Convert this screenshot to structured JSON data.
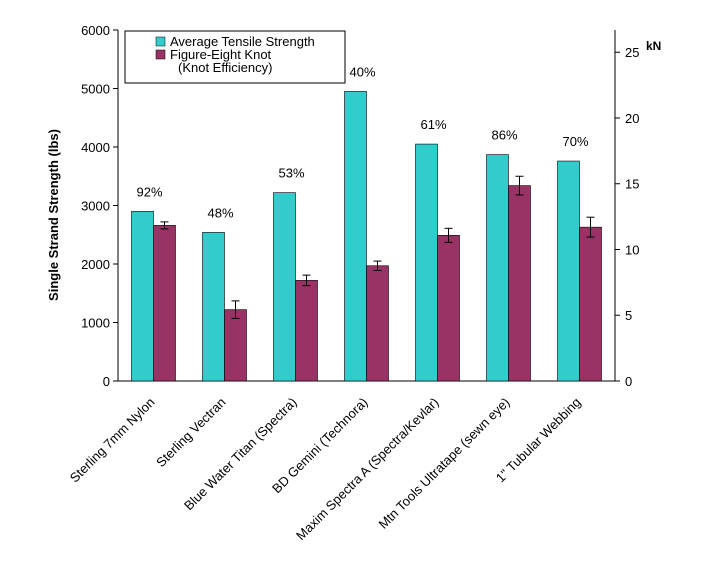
{
  "chart_data": {
    "type": "bar",
    "ylabel": "Single Strand Strength (lbs)",
    "y2label": "kN",
    "ylim": [
      0,
      6000
    ],
    "yticks": [
      0,
      1000,
      2000,
      3000,
      4000,
      5000,
      6000
    ],
    "y2lim": [
      0,
      26.69
    ],
    "y2ticks": [
      0,
      5,
      10,
      15,
      20,
      25
    ],
    "grid": false,
    "legend_position": "top-left",
    "categories": [
      "Sterling 7mm Nylon",
      "Sterling Vectran",
      "Blue Water Titan (Spectra)",
      "BD Gemini (Technora)",
      "Maxim Spectra A (Spectra/Kevlar)",
      "Mtn Tools Ultratape (sewn eye)",
      "1\" Tubular Webbing"
    ],
    "series": [
      {
        "name": "Average Tensile Strength",
        "color": "#33cccc",
        "values": [
          2900,
          2540,
          3220,
          4950,
          4050,
          3870,
          3760
        ]
      },
      {
        "name_lines": [
          "Figure-Eight Knot",
          "(Knot Efficiency)"
        ],
        "color": "#993366",
        "values": [
          2660,
          1220,
          1720,
          1970,
          2490,
          3340,
          2630
        ],
        "error": [
          60,
          150,
          90,
          80,
          120,
          160,
          170
        ]
      }
    ],
    "annotations": [
      "92%",
      "48%",
      "53%",
      "40%",
      "61%",
      "86%",
      "70%"
    ],
    "colors": {
      "axis": "#000000",
      "background": "#ffffff",
      "legend_border": "#000000"
    }
  }
}
